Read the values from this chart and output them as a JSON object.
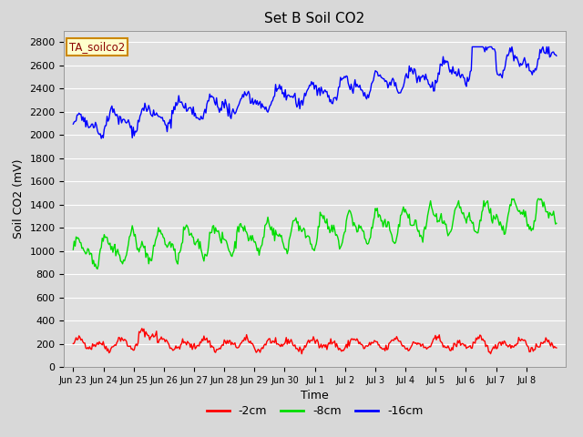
{
  "title": "Set B Soil CO2",
  "ylabel": "Soil CO2 (mV)",
  "xlabel": "Time",
  "legend_label": "TA_soilco2",
  "series_labels": [
    "-2cm",
    "-8cm",
    "-16cm"
  ],
  "series_colors": [
    "#ff0000",
    "#00dd00",
    "#0000ff"
  ],
  "ylim": [
    0,
    2900
  ],
  "yticks": [
    0,
    200,
    400,
    600,
    800,
    1000,
    1200,
    1400,
    1600,
    1800,
    2000,
    2200,
    2400,
    2600,
    2800
  ],
  "background_color": "#e8e8e8",
  "plot_bg_color": "#e0e0e0",
  "grid_color": "#ffffff",
  "title_fontsize": 11,
  "axis_fontsize": 9,
  "tick_fontsize": 8,
  "legend_fontsize": 9,
  "line_width": 1.0,
  "n_points": 500,
  "xtick_labels": [
    "Jun 23",
    "Jun 24",
    "Jun 25",
    "Jun 26",
    "Jun 27",
    "Jun 28",
    "Jun 29",
    "Jun 30",
    "Jul 1",
    "Jul 2",
    "Jul 3",
    "Jul 4",
    "Jul 5",
    "Jul 6",
    "Jul 7",
    "Jul 8"
  ]
}
